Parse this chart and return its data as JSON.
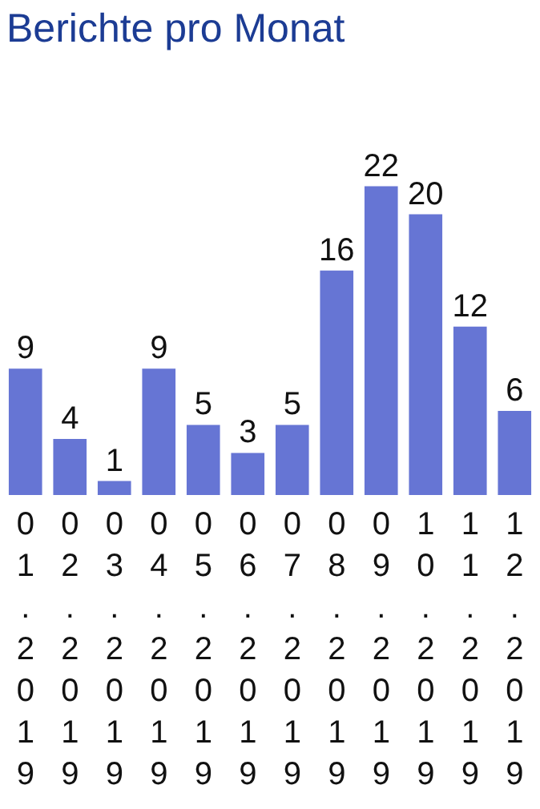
{
  "chart_data": {
    "type": "bar",
    "title": "Berichte pro Monat",
    "categories": [
      "01.2019",
      "02.2019",
      "03.2019",
      "04.2019",
      "05.2019",
      "06.2019",
      "07.2019",
      "08.2019",
      "09.2019",
      "10.2019",
      "11.2019",
      "12.2019"
    ],
    "values": [
      9,
      4,
      1,
      9,
      5,
      3,
      5,
      16,
      22,
      20,
      12,
      6
    ],
    "color": "#6675d4",
    "data_labels": true,
    "grid": false,
    "legend": false,
    "tick_labels": "x"
  }
}
